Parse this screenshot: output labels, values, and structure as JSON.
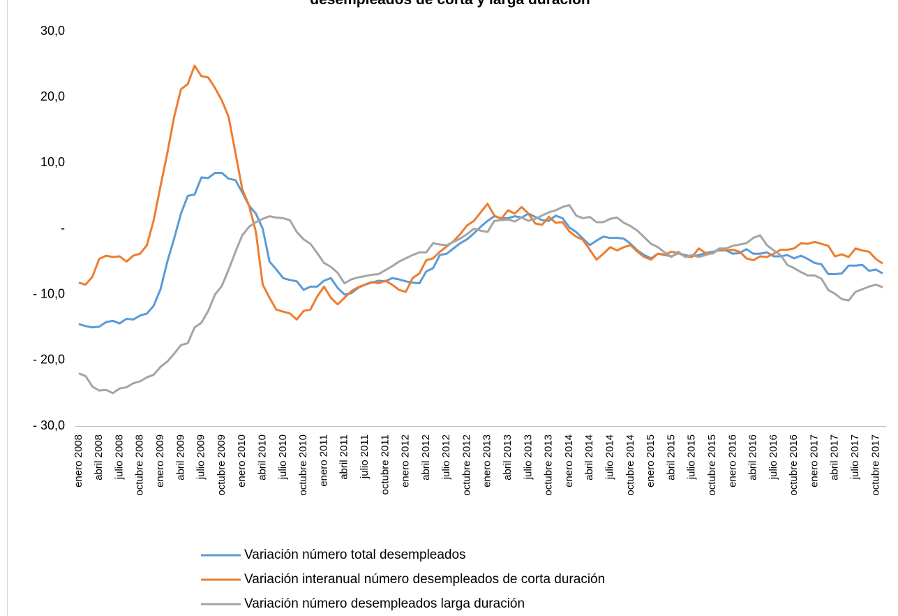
{
  "chart_data": {
    "type": "line",
    "title": "desempleados de corta y larga duración",
    "categories": [
      "enero 2008",
      null,
      null,
      "abril 2008",
      null,
      null,
      "julio 2008",
      null,
      null,
      "octubre 2008",
      null,
      null,
      "enero 2009",
      null,
      null,
      "abril 2009",
      null,
      null,
      "julio 2009",
      null,
      null,
      "octubre 2009",
      null,
      null,
      "enero 2010",
      null,
      null,
      "abril 2010",
      null,
      null,
      "julio 2010",
      null,
      null,
      "octubre 2010",
      null,
      null,
      "enero 2011",
      null,
      null,
      "abril 2011",
      null,
      null,
      "julio 2011",
      null,
      null,
      "octubre 2011",
      null,
      null,
      "enero 2012",
      null,
      null,
      "abril 2012",
      null,
      null,
      "julio 2012",
      null,
      null,
      "octubre 2012",
      null,
      null,
      "enero 2013",
      null,
      null,
      "abril 2013",
      null,
      null,
      "julio 2013",
      null,
      null,
      "octubre 2013",
      null,
      null,
      "enero 2014",
      null,
      null,
      "abril 2014",
      null,
      null,
      "julio 2014",
      null,
      null,
      "octubre 2014",
      null,
      null,
      "enero 2015",
      null,
      null,
      "abril 2015",
      null,
      null,
      "julio 2015",
      null,
      null,
      "octubre 2015",
      null,
      null,
      "enero 2016",
      null,
      null,
      "abril 2016",
      null,
      null,
      "julio 2016",
      null,
      null,
      "octubre 2016",
      null,
      null,
      "enero 2017",
      null,
      null,
      "abril 2017",
      null,
      null,
      "julio 2017",
      null,
      null,
      "octubre 2017",
      null
    ],
    "series": [
      {
        "name": "Variación número total desempleados",
        "color": "#5b9bd5",
        "values": [
          -14.5,
          -14.8,
          -15,
          -14.9,
          -14.2,
          -14,
          -14.4,
          -13.7,
          -13.8,
          -13.2,
          -12.9,
          -11.7,
          -9.2,
          -5,
          -1.5,
          2.3,
          5,
          5.2,
          7.8,
          7.7,
          8.5,
          8.5,
          7.6,
          7.4,
          5.5,
          3.5,
          2.3,
          0,
          -5,
          -6.2,
          -7.5,
          -7.8,
          -8.0,
          -9.3,
          -8.8,
          -8.8,
          -7.9,
          -7.5,
          -9,
          -10,
          -9.8,
          -9,
          -8.5,
          -8.2,
          -7.9,
          -8,
          -7.5,
          -7.7,
          -8,
          -8.2,
          -8.3,
          -6.5,
          -6,
          -4,
          -3.8,
          -3,
          -2.2,
          -1.6,
          -0.7,
          0.3,
          1.2,
          1.9,
          1.6,
          1.6,
          1.9,
          1.7,
          2.3,
          1.8,
          1.3,
          1.2,
          2.0,
          1.6,
          0.2,
          -0.5,
          -1.5,
          -2.5,
          -1.8,
          -1.2,
          -1.4,
          -1.4,
          -1.5,
          -2.3,
          -3.3,
          -4,
          -4.5,
          -3.8,
          -4,
          -4.2,
          -3.7,
          -4,
          -4.2,
          -4,
          -3.7,
          -3.5,
          -3.3,
          -3.3,
          -3.8,
          -3.7,
          -3.1,
          -3.8,
          -3.8,
          -3.6,
          -4.2,
          -4.2,
          -4,
          -4.5,
          -4.1,
          -4.6,
          -5.2,
          -5.4,
          -6.9,
          -6.9,
          -6.8,
          -5.6,
          -5.6,
          -5.5,
          -6.4,
          -6.2,
          -6.8
        ]
      },
      {
        "name": "Variación interanual número desempleados de corta duración",
        "color": "#ed7d31",
        "values": [
          -8.2,
          -8.5,
          -7.3,
          -4.6,
          -4.1,
          -4.3,
          -4.2,
          -5,
          -4.1,
          -3.8,
          -2.5,
          1.3,
          6.5,
          11.5,
          17,
          21.2,
          22,
          24.8,
          23.2,
          23,
          21.4,
          19.5,
          17,
          11.5,
          6,
          3.5,
          -0.5,
          -8.5,
          -10.5,
          -12.3,
          -12.6,
          -12.9,
          -13.8,
          -12.5,
          -12.3,
          -10.3,
          -8.8,
          -10.5,
          -11.5,
          -10.5,
          -9.5,
          -8.9,
          -8.5,
          -8.1,
          -8.3,
          -7.9,
          -8.5,
          -9.3,
          -9.6,
          -7.5,
          -6.8,
          -4.8,
          -4.5,
          -3.5,
          -2.7,
          -1.9,
          -0.8,
          0.5,
          1.2,
          2.5,
          3.8,
          2.0,
          1.5,
          2.8,
          2.3,
          3.3,
          2.3,
          0.8,
          0.6,
          1.8,
          0.9,
          1.0,
          -0.4,
          -1.2,
          -1.7,
          -3.2,
          -4.7,
          -3.8,
          -2.8,
          -3.3,
          -2.8,
          -2.5,
          -3.5,
          -4.3,
          -4.7,
          -3.8,
          -3.9,
          -3.5,
          -3.7,
          -4.2,
          -4.3,
          -3.0,
          -3.7,
          -3.8,
          -3.1,
          -3.3,
          -3.2,
          -3.5,
          -4.5,
          -4.8,
          -4.2,
          -4.3,
          -3.8,
          -3.2,
          -3.2,
          -3.0,
          -2.2,
          -2.3,
          -2.0,
          -2.3,
          -2.6,
          -4.2,
          -3.9,
          -4.3,
          -3.0,
          -3.3,
          -3.5,
          -4.6,
          -5.3
        ]
      },
      {
        "name": "Variación número desempleados larga duración",
        "color": "#a5a5a5",
        "values": [
          -22,
          -22.4,
          -24,
          -24.6,
          -24.5,
          -25,
          -24.3,
          -24.1,
          -23.5,
          -23.2,
          -22.6,
          -22.2,
          -21,
          -20.2,
          -19,
          -17.7,
          -17.4,
          -15,
          -14.3,
          -12.5,
          -10,
          -8.7,
          -6.2,
          -3.5,
          -1,
          0.3,
          1,
          1.5,
          1.9,
          1.7,
          1.6,
          1.3,
          -0.5,
          -1.6,
          -2.3,
          -3.7,
          -5.2,
          -5.8,
          -6.7,
          -8.3,
          -7.7,
          -7.4,
          -7.2,
          -7.0,
          -6.9,
          -6.3,
          -5.7,
          -5,
          -4.5,
          -4,
          -3.6,
          -3.6,
          -2.2,
          -2.4,
          -2.5,
          -2,
          -1.5,
          -0.8,
          0,
          -0.3,
          -0.5,
          1.2,
          1.3,
          1.4,
          1.1,
          1.7,
          1.2,
          1.5,
          2.0,
          2.5,
          2.8,
          3.3,
          3.6,
          2,
          1.6,
          1.8,
          1.0,
          1.0,
          1.5,
          1.7,
          0.9,
          0.4,
          -0.3,
          -1.3,
          -2.3,
          -2.8,
          -3.6,
          -4.3,
          -3.5,
          -4.3,
          -4.0,
          -4.3,
          -4.0,
          -3.7,
          -3.0,
          -3.0,
          -2.6,
          -2.4,
          -2.2,
          -1.4,
          -1.0,
          -2.5,
          -3.3,
          -4,
          -5.5,
          -6,
          -6.6,
          -7.1,
          -7.1,
          -7.6,
          -9.3,
          -9.9,
          -10.7,
          -10.9,
          -9.6,
          -9.2,
          -8.8,
          -8.5,
          -8.9
        ]
      }
    ],
    "ylim": [
      -30,
      30
    ],
    "yticks": [
      {
        "value": 30,
        "label": "30,0"
      },
      {
        "value": 20,
        "label": "20,0"
      },
      {
        "value": 10,
        "label": "10,0"
      },
      {
        "value": 0,
        "label": "-"
      },
      {
        "value": -10,
        "label": "- 10,0"
      },
      {
        "value": -20,
        "label": "- 20,0"
      },
      {
        "value": -30,
        "label": "- 30,0"
      }
    ],
    "grid": false,
    "legend": "bottom"
  }
}
